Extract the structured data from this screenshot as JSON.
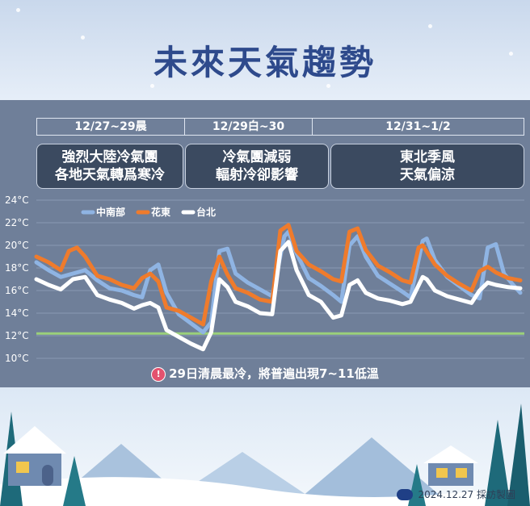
{
  "title": "未來天氣趨勢",
  "periods": [
    {
      "label": "12/27~29晨",
      "desc": [
        "強烈大陸冷氣團",
        "各地天氣轉爲寒冷"
      ]
    },
    {
      "label": "12/29白~30",
      "desc": [
        "冷氣團減弱",
        "輻射冷卻影響"
      ]
    },
    {
      "label": "12/31~1/2",
      "desc": [
        "東北季風",
        "天氣偏涼"
      ]
    }
  ],
  "chart_data": {
    "type": "line",
    "ylim": [
      10,
      24
    ],
    "yticks": [
      10,
      12,
      14,
      16,
      18,
      20,
      22,
      24
    ],
    "ytick_labels": [
      "10°C",
      "12°C",
      "14°C",
      "16°C",
      "18°C",
      "20°C",
      "22°C",
      "24°C"
    ],
    "legend_position": "top-left",
    "reference_line": {
      "value": 12.2,
      "color": "#9bd07a"
    },
    "series": [
      {
        "name": "中南部",
        "color": "#8fb4e3",
        "points": [
          [
            0,
            18.5
          ],
          [
            0.3,
            17.8
          ],
          [
            0.6,
            17.2
          ],
          [
            0.9,
            17.5
          ],
          [
            1.2,
            17.8
          ],
          [
            1.5,
            16.9
          ],
          [
            1.8,
            16.2
          ],
          [
            2.1,
            16.0
          ],
          [
            2.4,
            15.6
          ],
          [
            2.6,
            15.4
          ],
          [
            2.8,
            17.8
          ],
          [
            3.0,
            18.3
          ],
          [
            3.2,
            15.8
          ],
          [
            3.5,
            13.9
          ],
          [
            3.8,
            13.1
          ],
          [
            4.1,
            12.3
          ],
          [
            4.3,
            13.2
          ],
          [
            4.5,
            19.5
          ],
          [
            4.7,
            19.7
          ],
          [
            4.9,
            17.5
          ],
          [
            5.2,
            16.7
          ],
          [
            5.5,
            16.1
          ],
          [
            5.8,
            15.5
          ],
          [
            6.1,
            20.8
          ],
          [
            6.2,
            21.2
          ],
          [
            6.4,
            19.3
          ],
          [
            6.7,
            17.1
          ],
          [
            7.0,
            16.4
          ],
          [
            7.3,
            15.6
          ],
          [
            7.5,
            15.0
          ],
          [
            7.7,
            20.0
          ],
          [
            7.9,
            20.8
          ],
          [
            8.1,
            19.0
          ],
          [
            8.4,
            17.3
          ],
          [
            8.7,
            16.6
          ],
          [
            9.0,
            15.9
          ],
          [
            9.2,
            15.4
          ],
          [
            9.5,
            20.4
          ],
          [
            9.6,
            20.6
          ],
          [
            9.8,
            18.7
          ],
          [
            10.1,
            17.2
          ],
          [
            10.4,
            16.4
          ],
          [
            10.7,
            15.6
          ],
          [
            10.9,
            15.3
          ],
          [
            11.1,
            19.8
          ],
          [
            11.3,
            20.1
          ],
          [
            11.5,
            17.5
          ],
          [
            11.7,
            16.6
          ],
          [
            11.9,
            15.8
          ]
        ]
      },
      {
        "name": "花東",
        "color": "#ef7b2c",
        "points": [
          [
            0,
            19.0
          ],
          [
            0.3,
            18.5
          ],
          [
            0.6,
            17.8
          ],
          [
            0.8,
            19.5
          ],
          [
            1.0,
            19.8
          ],
          [
            1.2,
            19.0
          ],
          [
            1.5,
            17.3
          ],
          [
            1.8,
            17.0
          ],
          [
            2.1,
            16.5
          ],
          [
            2.4,
            16.2
          ],
          [
            2.6,
            17.1
          ],
          [
            2.8,
            17.5
          ],
          [
            3.0,
            16.8
          ],
          [
            3.2,
            14.5
          ],
          [
            3.5,
            14.2
          ],
          [
            3.8,
            13.6
          ],
          [
            4.1,
            13.0
          ],
          [
            4.3,
            16.8
          ],
          [
            4.5,
            19.0
          ],
          [
            4.7,
            17.4
          ],
          [
            4.9,
            16.2
          ],
          [
            5.2,
            15.8
          ],
          [
            5.5,
            15.2
          ],
          [
            5.8,
            15.0
          ],
          [
            6.0,
            21.3
          ],
          [
            6.2,
            21.8
          ],
          [
            6.4,
            19.5
          ],
          [
            6.7,
            18.3
          ],
          [
            7.0,
            17.7
          ],
          [
            7.3,
            17.0
          ],
          [
            7.5,
            16.8
          ],
          [
            7.7,
            21.2
          ],
          [
            7.9,
            21.5
          ],
          [
            8.1,
            19.6
          ],
          [
            8.4,
            18.2
          ],
          [
            8.7,
            17.6
          ],
          [
            9.0,
            16.9
          ],
          [
            9.2,
            16.7
          ],
          [
            9.4,
            19.8
          ],
          [
            9.5,
            20.0
          ],
          [
            9.8,
            18.3
          ],
          [
            10.1,
            17.3
          ],
          [
            10.4,
            16.6
          ],
          [
            10.7,
            16.0
          ],
          [
            10.9,
            17.7
          ],
          [
            11.1,
            18.1
          ],
          [
            11.3,
            17.6
          ],
          [
            11.6,
            17.1
          ],
          [
            11.9,
            16.9
          ]
        ]
      },
      {
        "name": "台北",
        "color": "#ffffff",
        "points": [
          [
            0,
            17.0
          ],
          [
            0.3,
            16.5
          ],
          [
            0.6,
            16.1
          ],
          [
            0.9,
            17.0
          ],
          [
            1.2,
            17.2
          ],
          [
            1.5,
            15.6
          ],
          [
            1.8,
            15.2
          ],
          [
            2.1,
            14.9
          ],
          [
            2.4,
            14.4
          ],
          [
            2.6,
            14.7
          ],
          [
            2.8,
            14.9
          ],
          [
            3.0,
            14.5
          ],
          [
            3.2,
            12.5
          ],
          [
            3.5,
            11.9
          ],
          [
            3.8,
            11.3
          ],
          [
            4.1,
            10.8
          ],
          [
            4.3,
            12.3
          ],
          [
            4.5,
            17.0
          ],
          [
            4.7,
            16.3
          ],
          [
            4.9,
            15.0
          ],
          [
            5.2,
            14.6
          ],
          [
            5.5,
            14.0
          ],
          [
            5.8,
            13.9
          ],
          [
            6.0,
            19.5
          ],
          [
            6.2,
            20.3
          ],
          [
            6.4,
            17.8
          ],
          [
            6.7,
            15.6
          ],
          [
            7.0,
            15.0
          ],
          [
            7.3,
            13.6
          ],
          [
            7.5,
            13.8
          ],
          [
            7.7,
            16.5
          ],
          [
            7.9,
            16.9
          ],
          [
            8.1,
            15.8
          ],
          [
            8.4,
            15.3
          ],
          [
            8.7,
            15.1
          ],
          [
            9.0,
            14.8
          ],
          [
            9.2,
            15.0
          ],
          [
            9.5,
            17.2
          ],
          [
            9.6,
            17.0
          ],
          [
            9.8,
            16.0
          ],
          [
            10.1,
            15.5
          ],
          [
            10.4,
            15.2
          ],
          [
            10.7,
            14.9
          ],
          [
            10.9,
            16.0
          ],
          [
            11.1,
            16.7
          ],
          [
            11.3,
            16.5
          ],
          [
            11.6,
            16.3
          ],
          [
            11.9,
            16.2
          ]
        ]
      }
    ]
  },
  "note": {
    "text": "29日清晨最冷，將普遍出現7~11低溫",
    "icon": "!"
  },
  "credit": "2024.12.27 採訪製圖"
}
